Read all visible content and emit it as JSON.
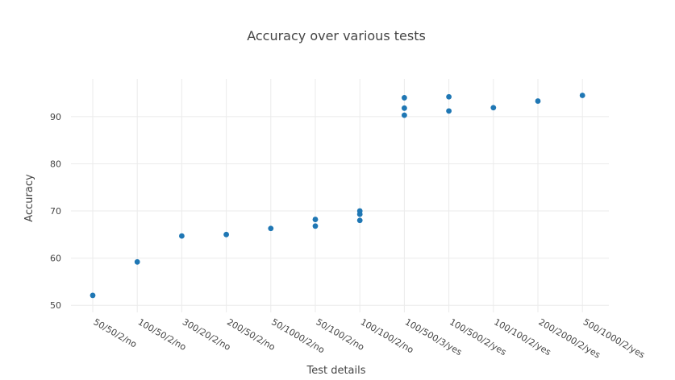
{
  "chart_data": {
    "type": "scatter",
    "title": "Accuracy over various tests",
    "xlabel": "Test details",
    "ylabel": "Accuracy",
    "categories": [
      "50/50/2/no",
      "100/50/2/no",
      "300/20/2/no",
      "200/50/2/no",
      "50/1000/2/no",
      "50/100/2/no",
      "100/100/2/no",
      "100/500/3/yes",
      "100/500/2/yes",
      "100/100/2/yes",
      "200/2000/2/yes",
      "500/1000/2/yes"
    ],
    "ylim": [
      48.5,
      98
    ],
    "yticks": [
      50,
      60,
      70,
      80,
      90
    ],
    "grid": true,
    "series": [
      {
        "color": "#1f77b4",
        "points": [
          {
            "x": "50/50/2/no",
            "y": 52.1
          },
          {
            "x": "100/50/2/no",
            "y": 59.2
          },
          {
            "x": "300/20/2/no",
            "y": 64.7
          },
          {
            "x": "200/50/2/no",
            "y": 65.0
          },
          {
            "x": "50/1000/2/no",
            "y": 66.3
          },
          {
            "x": "50/100/2/no",
            "y": 68.2
          },
          {
            "x": "50/100/2/no",
            "y": 66.8
          },
          {
            "x": "100/100/2/no",
            "y": 70.0
          },
          {
            "x": "100/100/2/no",
            "y": 69.3
          },
          {
            "x": "100/100/2/no",
            "y": 68.0
          },
          {
            "x": "100/500/3/yes",
            "y": 94.0
          },
          {
            "x": "100/500/3/yes",
            "y": 91.8
          },
          {
            "x": "100/500/3/yes",
            "y": 90.3
          },
          {
            "x": "100/500/2/yes",
            "y": 94.2
          },
          {
            "x": "100/500/2/yes",
            "y": 91.2
          },
          {
            "x": "100/100/2/yes",
            "y": 91.9
          },
          {
            "x": "200/2000/2/yes",
            "y": 93.3
          },
          {
            "x": "500/1000/2/yes",
            "y": 94.5
          }
        ]
      }
    ]
  }
}
